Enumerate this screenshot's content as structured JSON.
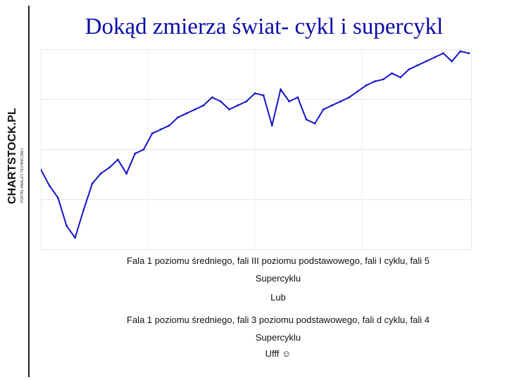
{
  "logo": {
    "brand": "CHARTSTOCK.PL",
    "tagline": "PORTAL ANALIZY TECHNICZNEJ"
  },
  "title": "Dokąd zmierza świat- cykl i supercykl",
  "chart_header": {
    "line1": "",
    "line2": ""
  },
  "caption": {
    "line1": "Fala 1 poziomu średniego, fali III poziomu podstawowego, fali I cyklu, fali 5",
    "line2": "Supercyklu",
    "line3": "Lub",
    "line4": "Fala 1 poziomu średniego, fali 3 poziomu podstawowego, fali d cyklu, fali 4",
    "line5": "Supercyklu",
    "ending": "Ufff",
    "ending_icon": "smiley-icon"
  },
  "chart_data": {
    "type": "line",
    "title": "",
    "xlabel": "",
    "ylabel": "",
    "color": "#1414c8",
    "grid": true,
    "ylim": [
      0,
      100
    ],
    "x": [
      0,
      2,
      4,
      6,
      8,
      10,
      12,
      14,
      16,
      18,
      20,
      22,
      24,
      26,
      28,
      30,
      32,
      34,
      36,
      38,
      40,
      42,
      44,
      46,
      48,
      50,
      52,
      54,
      56,
      58,
      60,
      62,
      64,
      66,
      68,
      70,
      72,
      74,
      76,
      78,
      80,
      82,
      84,
      86,
      88,
      90,
      92,
      94,
      96,
      98,
      100
    ],
    "series": [
      {
        "values": [
          40,
          32,
          26,
          12,
          6,
          20,
          33,
          38,
          41,
          45,
          38,
          48,
          50,
          58,
          60,
          62,
          66,
          68,
          70,
          72,
          76,
          74,
          70,
          72,
          74,
          78,
          77,
          62,
          80,
          74,
          76,
          65,
          63,
          70,
          72,
          74,
          76,
          79,
          82,
          84,
          85,
          88,
          86,
          90,
          92,
          94,
          96,
          98,
          94,
          99,
          98
        ]
      }
    ]
  }
}
